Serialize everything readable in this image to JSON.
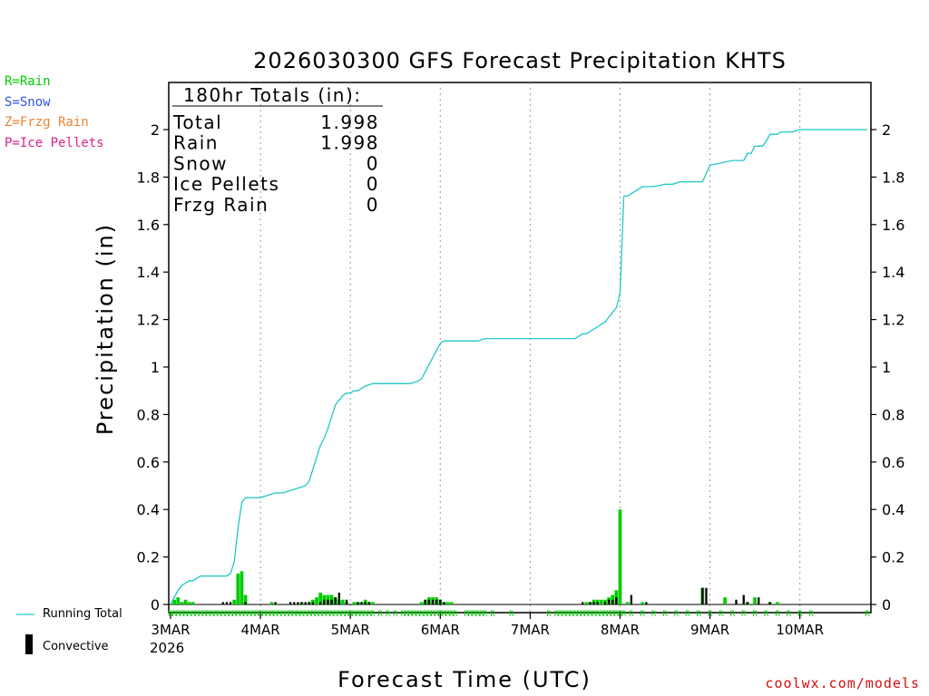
{
  "legend_types": [
    {
      "label": "R=Rain",
      "color": "#00cc00"
    },
    {
      "label": "S=Snow",
      "color": "#3050e0"
    },
    {
      "label": "Z=Frzg Rain",
      "color": "#f08030"
    },
    {
      "label": "P=Ice Pellets",
      "color": "#e0208a"
    }
  ],
  "totals_box": {
    "heading": "180hr Totals (in):",
    "rows": [
      {
        "label": "Total",
        "value": "1.998"
      },
      {
        "label": "Rain",
        "value": "1.998"
      },
      {
        "label": "Snow",
        "value": "0"
      },
      {
        "label": "Ice Pellets",
        "value": "0"
      },
      {
        "label": "Frzg Rain",
        "value": "0"
      }
    ]
  },
  "bottom_legend": {
    "running_total": "Running Total",
    "convective": "Convective"
  },
  "credit": "coolwx.com/models",
  "colors": {
    "running_total": "#20c8c8",
    "rain_bar": "#00cc00",
    "convective_bar": "#000000",
    "gridline": "#999999"
  },
  "chart_data": {
    "type": "bar",
    "title": "2026030300 GFS Forecast Precipitation KHTS",
    "xlabel": "Forecast Time (UTC)",
    "ylabel": "Precipitation (in)",
    "ylim": [
      0,
      2.2
    ],
    "xlim_hours": [
      0,
      186
    ],
    "y_ticks": [
      "0",
      "0.2",
      "0.4",
      "0.6",
      "0.8",
      "1",
      "1.2",
      "1.4",
      "1.6",
      "1.8",
      "2"
    ],
    "x_ticks": [
      {
        "hour": 0,
        "label": "3MAR"
      },
      {
        "hour": 24,
        "label": "4MAR"
      },
      {
        "hour": 48,
        "label": "5MAR"
      },
      {
        "hour": 72,
        "label": "6MAR"
      },
      {
        "hour": 96,
        "label": "7MAR"
      },
      {
        "hour": 120,
        "label": "8MAR"
      },
      {
        "hour": 144,
        "label": "9MAR"
      },
      {
        "hour": 168,
        "label": "10MAR"
      }
    ],
    "year_label": "2026",
    "series": [
      {
        "name": "Running Total",
        "x": [
          0,
          1,
          2,
          3,
          4,
          5,
          6,
          7,
          8,
          9,
          10,
          11,
          12,
          13,
          14,
          15,
          16,
          17,
          18,
          19,
          20,
          21,
          22,
          23,
          24,
          26,
          28,
          30,
          32,
          34,
          36,
          37,
          38,
          39,
          40,
          41,
          42,
          43,
          44,
          45,
          46,
          47,
          48,
          49,
          50,
          52,
          54,
          56,
          58,
          60,
          62,
          64,
          66,
          67,
          68,
          69,
          70,
          71,
          72,
          73,
          74,
          76,
          78,
          80,
          82,
          84,
          86,
          88,
          90,
          92,
          94,
          96,
          98,
          100,
          102,
          104,
          106,
          108,
          109,
          110,
          111,
          112,
          113,
          114,
          115,
          116,
          117,
          118,
          119,
          120,
          121,
          122,
          123,
          126,
          129,
          132,
          134,
          136,
          138,
          140,
          141,
          142,
          144,
          147,
          150,
          151,
          152,
          153,
          154,
          155,
          156,
          157,
          158,
          159,
          160,
          161,
          162,
          163,
          164,
          166,
          168,
          170,
          172,
          174,
          176,
          178,
          180,
          182,
          186
        ],
        "values": [
          0.0,
          0.03,
          0.06,
          0.08,
          0.09,
          0.1,
          0.1,
          0.11,
          0.12,
          0.12,
          0.12,
          0.12,
          0.12,
          0.12,
          0.12,
          0.12,
          0.13,
          0.18,
          0.32,
          0.43,
          0.45,
          0.45,
          0.45,
          0.45,
          0.45,
          0.46,
          0.47,
          0.47,
          0.48,
          0.49,
          0.5,
          0.52,
          0.57,
          0.62,
          0.67,
          0.7,
          0.74,
          0.79,
          0.84,
          0.86,
          0.88,
          0.89,
          0.89,
          0.9,
          0.9,
          0.92,
          0.93,
          0.93,
          0.93,
          0.93,
          0.93,
          0.93,
          0.94,
          0.95,
          0.98,
          1.01,
          1.04,
          1.07,
          1.1,
          1.11,
          1.11,
          1.11,
          1.11,
          1.11,
          1.11,
          1.12,
          1.12,
          1.12,
          1.12,
          1.12,
          1.12,
          1.12,
          1.12,
          1.12,
          1.12,
          1.12,
          1.12,
          1.12,
          1.13,
          1.14,
          1.14,
          1.15,
          1.16,
          1.17,
          1.18,
          1.19,
          1.21,
          1.23,
          1.25,
          1.31,
          1.72,
          1.72,
          1.73,
          1.76,
          1.76,
          1.77,
          1.77,
          1.78,
          1.78,
          1.78,
          1.78,
          1.78,
          1.85,
          1.86,
          1.87,
          1.87,
          1.87,
          1.87,
          1.9,
          1.9,
          1.93,
          1.93,
          1.93,
          1.95,
          1.98,
          1.98,
          1.98,
          1.99,
          1.99,
          1.99,
          2.0,
          2.0,
          2.0,
          2.0,
          2.0,
          2.0,
          2.0,
          2.0,
          2.0
        ]
      },
      {
        "name": "Rain",
        "x": [
          1,
          2,
          3,
          4,
          5,
          6,
          17,
          18,
          19,
          20,
          27,
          35,
          37,
          38,
          39,
          40,
          41,
          42,
          43,
          44,
          45,
          46,
          47,
          49,
          50,
          51,
          52,
          53,
          54,
          67,
          68,
          69,
          70,
          71,
          72,
          73,
          74,
          75,
          111,
          112,
          113,
          114,
          115,
          116,
          117,
          118,
          119,
          120,
          122,
          126,
          142,
          148,
          154,
          156,
          160,
          162
        ],
        "values": [
          0.02,
          0.03,
          0.01,
          0.02,
          0.01,
          0.01,
          0.02,
          0.13,
          0.14,
          0.04,
          0.01,
          0.01,
          0.01,
          0.02,
          0.03,
          0.05,
          0.04,
          0.04,
          0.04,
          0.03,
          0.02,
          0.02,
          0.01,
          0.01,
          0.01,
          0.01,
          0.02,
          0.01,
          0.01,
          0.01,
          0.02,
          0.03,
          0.03,
          0.03,
          0.02,
          0.01,
          0.01,
          0.01,
          0.01,
          0.01,
          0.02,
          0.02,
          0.02,
          0.02,
          0.03,
          0.04,
          0.06,
          0.4,
          0.01,
          0.01,
          0.07,
          0.03,
          0.01,
          0.03,
          0.01,
          0.01
        ]
      },
      {
        "name": "Convective",
        "x": [
          14,
          15,
          16,
          20,
          28,
          32,
          33,
          34,
          35,
          36,
          37,
          38,
          40,
          41,
          42,
          43,
          44,
          45,
          47,
          50,
          51,
          52,
          53,
          68,
          69,
          70,
          71,
          72,
          73,
          110,
          112,
          113,
          114,
          116,
          117,
          118,
          119,
          123,
          127,
          142,
          143,
          151,
          153,
          154,
          157,
          160
        ],
        "values": [
          0.01,
          0.01,
          0.01,
          0.01,
          0.01,
          0.01,
          0.01,
          0.01,
          0.01,
          0.01,
          0.01,
          0.01,
          0.01,
          0.02,
          0.02,
          0.02,
          0.03,
          0.05,
          0.02,
          0.01,
          0.01,
          0.01,
          0.01,
          0.02,
          0.02,
          0.02,
          0.02,
          0.02,
          0.01,
          0.01,
          0.01,
          0.01,
          0.01,
          0.01,
          0.02,
          0.02,
          0.03,
          0.04,
          0.01,
          0.07,
          0.07,
          0.02,
          0.04,
          0.01,
          0.03,
          0.01
        ]
      }
    ],
    "ptype_codes": {
      "rain_hours": [
        0,
        1,
        2,
        3,
        4,
        5,
        6,
        7,
        8,
        9,
        10,
        11,
        12,
        13,
        14,
        15,
        16,
        17,
        18,
        19,
        20,
        21,
        22,
        23,
        24,
        25,
        26,
        27,
        28,
        29,
        30,
        31,
        32,
        33,
        34,
        35,
        36,
        37,
        38,
        39,
        40,
        41,
        42,
        43,
        44,
        45,
        46,
        47,
        48,
        49,
        50,
        51,
        52,
        53,
        54,
        56,
        58,
        60,
        62,
        63,
        64,
        65,
        66,
        67,
        68,
        69,
        70,
        71,
        72,
        73,
        74,
        75,
        76,
        79,
        80,
        81,
        82,
        83,
        84,
        86,
        91,
        101,
        103,
        104,
        105,
        106,
        107,
        108,
        109,
        110,
        111,
        112,
        113,
        114,
        115,
        116,
        117,
        118,
        119,
        120,
        121,
        123,
        126,
        129,
        132,
        135,
        138,
        141,
        144,
        147,
        150,
        153,
        156,
        159,
        162,
        165,
        168,
        171,
        186
      ],
      "code": "R"
    }
  }
}
